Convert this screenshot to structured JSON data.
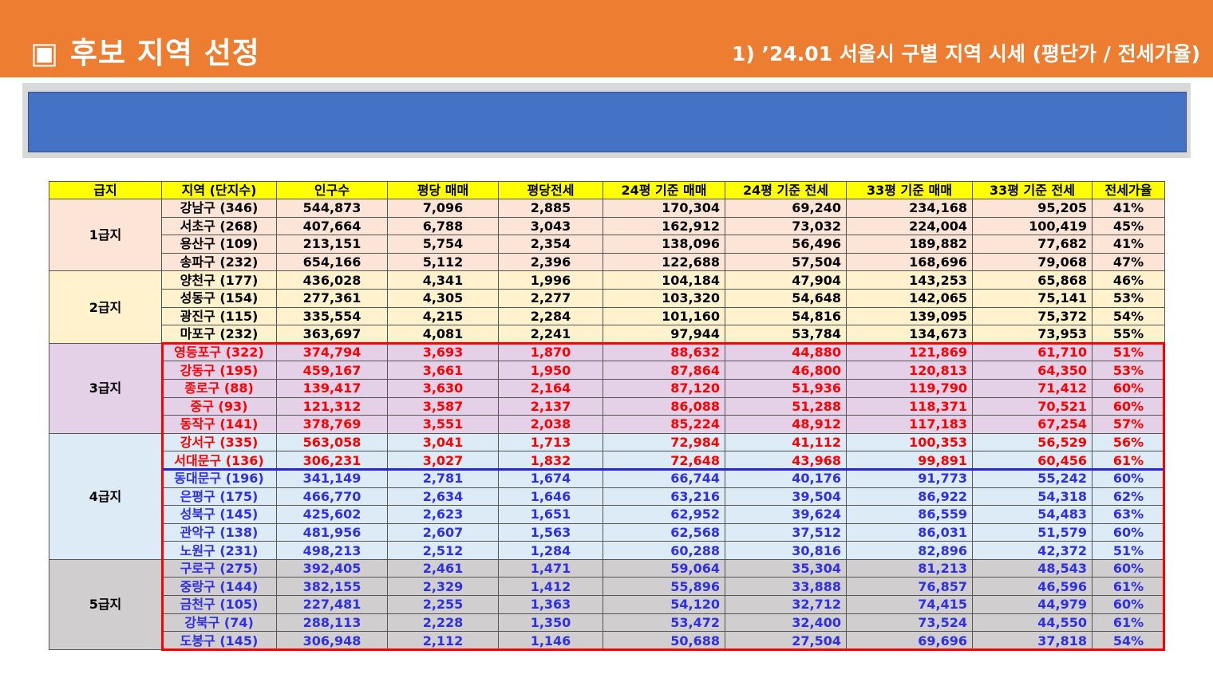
{
  "header": {
    "title": "▣ 후보 지역 선정",
    "subtitle": "1) ’24.01 서울시 구별 지역 시세 (평단가 / 전세가율)"
  },
  "banner": {
    "text": ""
  },
  "colors": {
    "header_bg": "#ED7D31",
    "banner_bg": "#4472C4",
    "table_header_bg": "#FFFF00",
    "tier1_bg": "#FCE4D6",
    "tier2_bg": "#FFF2CC",
    "tier3_bg": "#E4D1E8",
    "tier4_bg": "#DDEBF7",
    "tier5_bg": "#D0CECE",
    "highlight_red": "#FF0000",
    "highlight_blue": "#2323E8"
  },
  "table": {
    "columns": [
      "급지",
      "지역 (단지수)",
      "인구수",
      "평당 매매",
      "평당전세",
      "24평 기준 매매",
      "24평 기준 전세",
      "33평 기준 매매",
      "33평 기준 전세",
      "전세가율"
    ],
    "tiers": [
      {
        "label": "1급지",
        "rows": [
          [
            "강남구 (346)",
            "544,873",
            "7,096",
            "2,885",
            "170,304",
            "69,240",
            "234,168",
            "95,205",
            "41%"
          ],
          [
            "서초구 (268)",
            "407,664",
            "6,788",
            "3,043",
            "162,912",
            "73,032",
            "224,004",
            "100,419",
            "45%"
          ],
          [
            "용산구 (109)",
            "213,151",
            "5,754",
            "2,354",
            "138,096",
            "56,496",
            "189,882",
            "77,682",
            "41%"
          ],
          [
            "송파구 (232)",
            "654,166",
            "5,112",
            "2,396",
            "122,688",
            "57,504",
            "168,696",
            "79,068",
            "47%"
          ]
        ]
      },
      {
        "label": "2급지",
        "rows": [
          [
            "양천구 (177)",
            "436,028",
            "4,341",
            "1,996",
            "104,184",
            "47,904",
            "143,253",
            "65,868",
            "46%"
          ],
          [
            "성동구 (154)",
            "277,361",
            "4,305",
            "2,277",
            "103,320",
            "54,648",
            "142,065",
            "75,141",
            "53%"
          ],
          [
            "광진구 (115)",
            "335,554",
            "4,215",
            "2,284",
            "101,160",
            "54,816",
            "139,095",
            "75,372",
            "54%"
          ],
          [
            "마포구 (232)",
            "363,697",
            "4,081",
            "2,241",
            "97,944",
            "53,784",
            "134,673",
            "73,953",
            "55%"
          ]
        ]
      },
      {
        "label": "3급지",
        "rows": [
          [
            "영등포구 (322)",
            "374,794",
            "3,693",
            "1,870",
            "88,632",
            "44,880",
            "121,869",
            "61,710",
            "51%"
          ],
          [
            "강동구 (195)",
            "459,167",
            "3,661",
            "1,950",
            "87,864",
            "46,800",
            "120,813",
            "64,350",
            "53%"
          ],
          [
            "종로구 (88)",
            "139,417",
            "3,630",
            "2,164",
            "87,120",
            "51,936",
            "119,790",
            "71,412",
            "60%"
          ],
          [
            "중구 (93)",
            "121,312",
            "3,587",
            "2,137",
            "86,088",
            "51,288",
            "118,371",
            "70,521",
            "60%"
          ],
          [
            "동작구 (141)",
            "378,769",
            "3,551",
            "2,038",
            "85,224",
            "48,912",
            "117,183",
            "67,254",
            "57%"
          ]
        ]
      },
      {
        "label": "4급지",
        "rows": [
          [
            "강서구 (335)",
            "563,058",
            "3,041",
            "1,713",
            "72,984",
            "41,112",
            "100,353",
            "56,529",
            "56%"
          ],
          [
            "서대문구 (136)",
            "306,231",
            "3,027",
            "1,832",
            "72,648",
            "43,968",
            "99,891",
            "60,456",
            "61%"
          ],
          [
            "동대문구 (196)",
            "341,149",
            "2,781",
            "1,674",
            "66,744",
            "40,176",
            "91,773",
            "55,242",
            "60%"
          ],
          [
            "은평구 (175)",
            "466,770",
            "2,634",
            "1,646",
            "63,216",
            "39,504",
            "86,922",
            "54,318",
            "62%"
          ],
          [
            "성북구 (145)",
            "425,602",
            "2,623",
            "1,651",
            "62,952",
            "39,624",
            "86,559",
            "54,483",
            "63%"
          ],
          [
            "관악구 (138)",
            "481,956",
            "2,607",
            "1,563",
            "62,568",
            "37,512",
            "86,031",
            "51,579",
            "60%"
          ],
          [
            "노원구 (231)",
            "498,213",
            "2,512",
            "1,284",
            "60,288",
            "30,816",
            "82,896",
            "42,372",
            "51%"
          ]
        ]
      },
      {
        "label": "5급지",
        "rows": [
          [
            "구로구 (275)",
            "392,405",
            "2,461",
            "1,471",
            "59,064",
            "35,304",
            "81,213",
            "48,543",
            "60%"
          ],
          [
            "중랑구 (144)",
            "382,155",
            "2,329",
            "1,412",
            "55,896",
            "33,888",
            "76,857",
            "46,596",
            "61%"
          ],
          [
            "금천구 (105)",
            "227,481",
            "2,255",
            "1,363",
            "54,120",
            "32,712",
            "74,415",
            "44,979",
            "60%"
          ],
          [
            "강북구 (74)",
            "288,113",
            "2,228",
            "1,350",
            "53,472",
            "32,400",
            "73,524",
            "44,550",
            "61%"
          ],
          [
            "도봉구 (145)",
            "306,948",
            "2,112",
            "1,146",
            "50,688",
            "27,504",
            "69,696",
            "37,818",
            "54%"
          ]
        ]
      }
    ]
  }
}
